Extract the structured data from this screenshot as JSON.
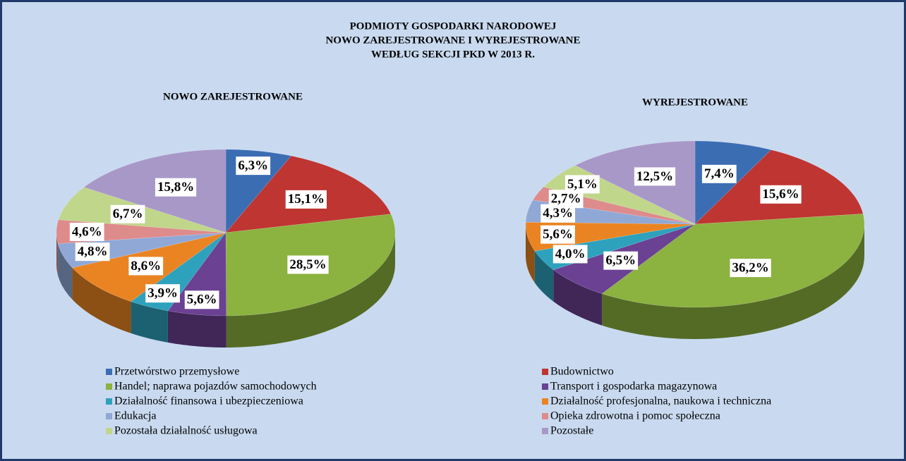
{
  "title": [
    "PODMIOTY GOSPODARKI NARODOWEJ",
    "NOWO ZAREJESTROWANE I WYREJESTROWANE",
    "WEDŁUG SEKCJI PKD W 2013 R."
  ],
  "legend": {
    "categories": [
      "Przetwórstwo przemysłowe",
      "Budownictwo",
      "Handel; naprawa pojazdów samochodowych",
      "Transport i gospodarka magazynowa",
      "Działalność finansowa i ubezpieczeniowa",
      "Działalność profesjonalna, naukowa i techniczna",
      "Edukacja",
      "Opieka zdrowotna i pomoc społeczna",
      "Pozostała działalność usługowa",
      "Pozostałe"
    ],
    "colors": [
      "#3b6db3",
      "#be3532",
      "#8cb23f",
      "#6b4193",
      "#2ea2bd",
      "#ea8422",
      "#90a8d6",
      "#de8b8b",
      "#c0d68a",
      "#a898c8"
    ]
  },
  "chart_data": [
    {
      "type": "pie3d",
      "title": "NOWO ZAREJESTROWANE",
      "values": [
        6.3,
        15.1,
        28.5,
        5.6,
        3.9,
        8.6,
        4.8,
        4.6,
        6.7,
        15.8
      ],
      "value_labels": [
        "6,3%",
        "15,1%",
        "28,5%",
        "5,6%",
        "3,9%",
        "8,6%",
        "4,8%",
        "4,6%",
        "6,7%",
        "15,8%"
      ]
    },
    {
      "type": "pie3d",
      "title": "WYREJESTROWANE",
      "values": [
        7.4,
        15.6,
        36.2,
        6.5,
        4.0,
        5.6,
        4.3,
        2.7,
        5.1,
        12.5
      ],
      "value_labels": [
        "7,4%",
        "15,6%",
        "36,2%",
        "6,5%",
        "4,0%",
        "5,6%",
        "4,3%",
        "2,7%",
        "5,1%",
        "12,5%"
      ]
    }
  ]
}
